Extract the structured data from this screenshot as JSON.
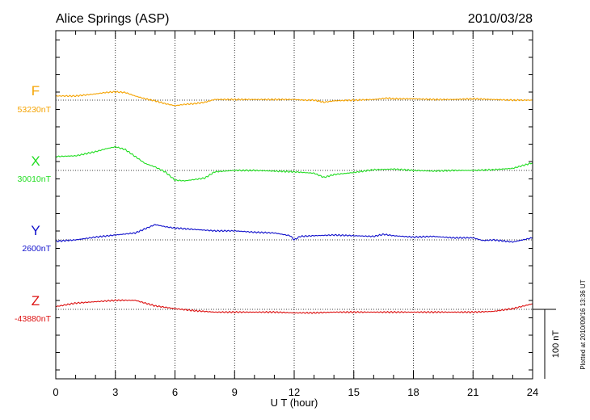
{
  "header": {
    "station": "Alice Springs (ASP)",
    "date": "2010/03/28"
  },
  "footer": {
    "plotted": "Plotted at 2010/09/16 13:36 UT"
  },
  "scale_bar": {
    "label": "100 nT",
    "value_nT": 100
  },
  "chart_data": {
    "type": "line",
    "xlabel": "U T (hour)",
    "xlim": [
      0,
      24
    ],
    "xticks": [
      "0",
      "3",
      "6",
      "9",
      "12",
      "15",
      "18",
      "21",
      "24"
    ],
    "grid": true,
    "series": [
      {
        "name": "F",
        "baseline_label": "53230nT",
        "baseline_nT": 53230,
        "color": "#f5a300",
        "x": [
          0,
          1,
          2,
          2.5,
          3,
          3.5,
          4,
          4.5,
          5,
          5.5,
          6,
          6.5,
          7,
          7.5,
          8,
          9,
          10,
          11,
          12,
          12.5,
          13,
          13.5,
          14,
          15,
          16,
          16.7,
          17,
          18,
          19,
          20,
          21,
          22,
          23,
          24
        ],
        "values": [
          6,
          6,
          9,
          11,
          12,
          11,
          6,
          2,
          -1,
          -5,
          -8,
          -6,
          -5,
          -3,
          1,
          1,
          1,
          1,
          1,
          0,
          0,
          -3,
          -1,
          0,
          1,
          3,
          2,
          2,
          1,
          1,
          2,
          1,
          0,
          0
        ]
      },
      {
        "name": "X",
        "baseline_label": "30010nT",
        "baseline_nT": 30010,
        "color": "#22dd22",
        "x": [
          0,
          1,
          2,
          2.5,
          3,
          3.5,
          4,
          4.5,
          5,
          5.5,
          6,
          6.5,
          7,
          7.5,
          8,
          9,
          10,
          11,
          12,
          12.5,
          13,
          13.5,
          14,
          15,
          16,
          17,
          18,
          19,
          20,
          21,
          22,
          23,
          24
        ],
        "values": [
          20,
          21,
          27,
          31,
          34,
          30,
          20,
          10,
          5,
          -2,
          -14,
          -15,
          -13,
          -11,
          -2,
          0,
          0,
          -1,
          -2,
          -3,
          -4,
          -10,
          -6,
          -3,
          1,
          2,
          0,
          -1,
          0,
          0,
          1,
          3,
          11
        ]
      },
      {
        "name": "Y",
        "baseline_label": "2600nT",
        "baseline_nT": 2600,
        "color": "#1111cc",
        "x": [
          0,
          1,
          2,
          3,
          4,
          4.5,
          5,
          5.5,
          6,
          7,
          8,
          9,
          10,
          11,
          11.8,
          12,
          12.3,
          13,
          14,
          15,
          16,
          16.5,
          17,
          18,
          19,
          20,
          21,
          21.5,
          22,
          23,
          24
        ],
        "values": [
          -2,
          0,
          4,
          7,
          10,
          16,
          22,
          19,
          17,
          15,
          13,
          13,
          11,
          10,
          6,
          0,
          5,
          6,
          7,
          6,
          5,
          8,
          6,
          4,
          5,
          3,
          3,
          -1,
          0,
          -3,
          3
        ]
      },
      {
        "name": "Z",
        "baseline_label": "-43880nT",
        "baseline_nT": -43880,
        "color": "#dd1111",
        "x": [
          0,
          1,
          2,
          3,
          4,
          5,
          6,
          7,
          8,
          9,
          10,
          11,
          12,
          13,
          14,
          15,
          16,
          17,
          18,
          19,
          20,
          21,
          22,
          23,
          24
        ],
        "values": [
          4,
          9,
          11,
          13,
          13,
          5,
          1,
          -2,
          -4,
          -4,
          -4,
          -4,
          -5,
          -5,
          -4,
          -4,
          -4,
          -4,
          -4,
          -4,
          -4,
          -4,
          -3,
          1,
          8
        ]
      }
    ]
  }
}
